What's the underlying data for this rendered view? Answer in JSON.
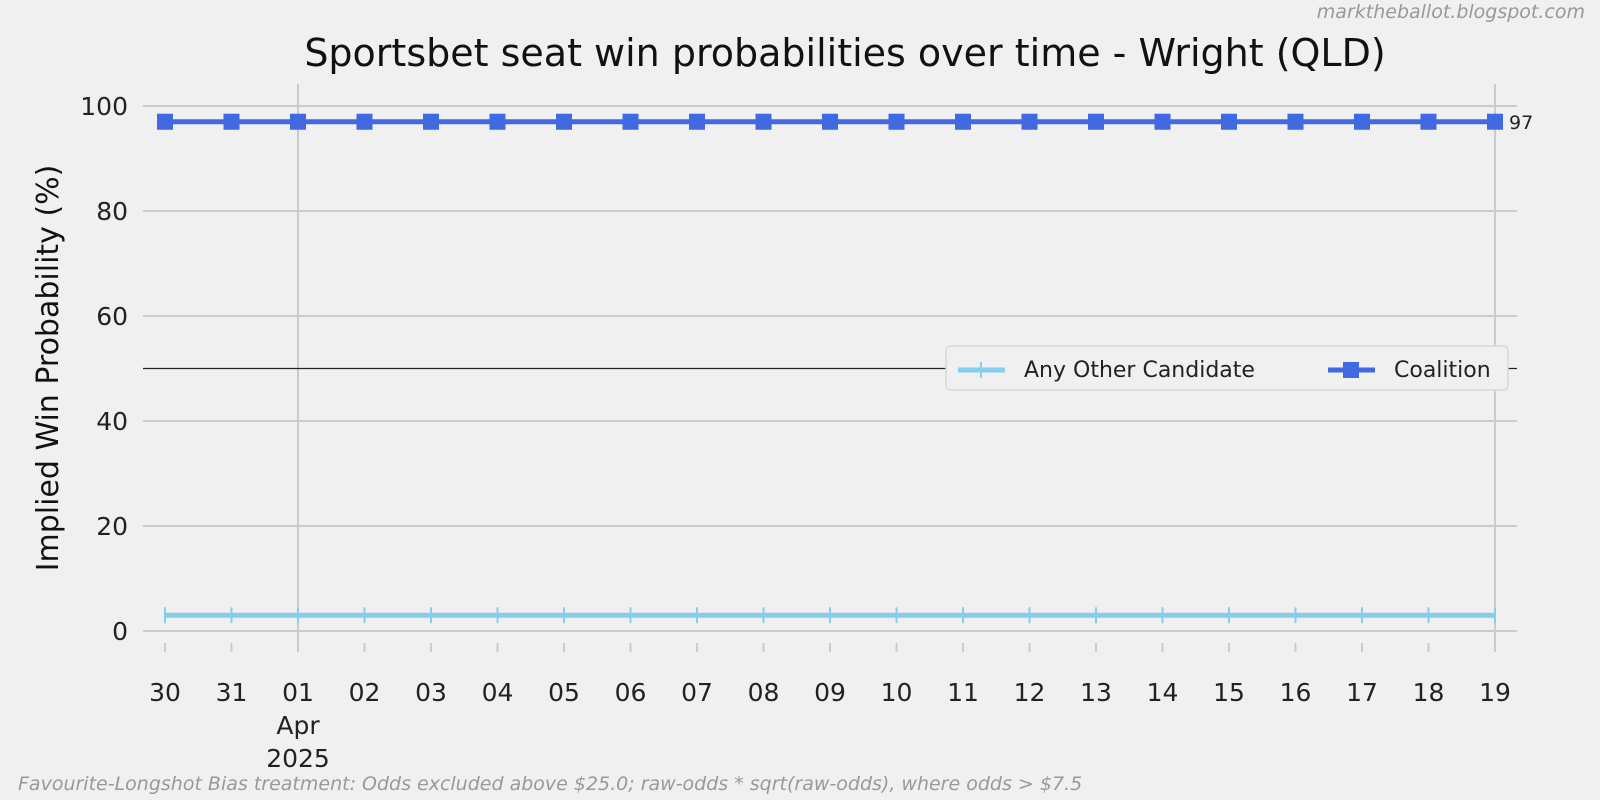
{
  "credit": "marktheballot.blogspot.com",
  "footnote": "Favourite-Longshot Bias treatment: Odds excluded above $25.0; raw-odds * sqrt(raw-odds), where odds > $7.5",
  "chart_data": {
    "type": "line",
    "title": "Sportsbet seat win probabilities over time - Wright (QLD)",
    "xlabel": "",
    "ylabel": "Implied Win Probability (%)",
    "x": [
      "30",
      "31",
      "01",
      "02",
      "03",
      "04",
      "05",
      "06",
      "07",
      "08",
      "09",
      "10",
      "11",
      "12",
      "13",
      "14",
      "15",
      "16",
      "17",
      "18",
      "19"
    ],
    "x_secondary_label": {
      "at": "01",
      "lines": [
        "Apr",
        "2025"
      ]
    },
    "ylim": [
      0,
      100
    ],
    "yticks": [
      0,
      20,
      40,
      60,
      80,
      100
    ],
    "reference_line": 50,
    "grid": true,
    "legend_position": "center-right",
    "series": [
      {
        "name": "Any Other Candidate",
        "color": "#87ceeb",
        "marker": "vertical-tick",
        "values": [
          3,
          3,
          3,
          3,
          3,
          3,
          3,
          3,
          3,
          3,
          3,
          3,
          3,
          3,
          3,
          3,
          3,
          3,
          3,
          3,
          3
        ]
      },
      {
        "name": "Coalition",
        "color": "#4169e1",
        "marker": "square",
        "values": [
          97,
          97,
          97,
          97,
          97,
          97,
          97,
          97,
          97,
          97,
          97,
          97,
          97,
          97,
          97,
          97,
          97,
          97,
          97,
          97,
          97
        ],
        "end_label": "97"
      }
    ]
  }
}
